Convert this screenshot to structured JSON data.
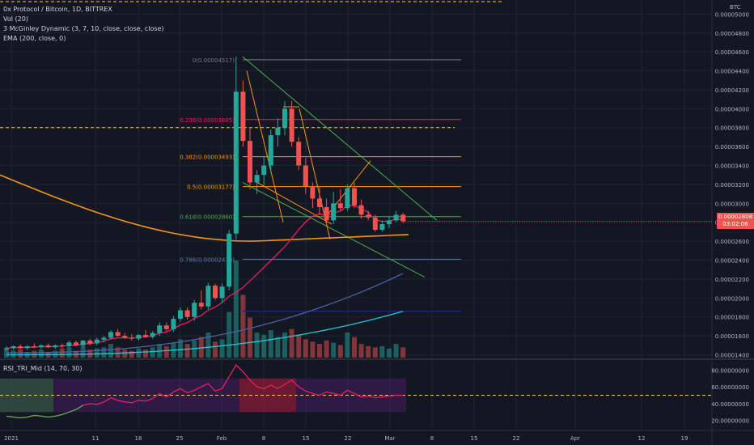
{
  "legend": {
    "symbol": "0x Protocol / Bitcoin, 1D, BITTREX",
    "vol": "Vol (20)",
    "mcginley": "3 McGinley Dynamic (3, 7, 10, close, close, close)",
    "ema": "EMA (200, close, 0)"
  },
  "rsi_legend": "RSI_TRI_Mid (14, 70, 30)",
  "price_tag": {
    "value": "0.00002808",
    "countdown": "03:02:06"
  },
  "axis_unit": "BTC",
  "colors": {
    "background": "#131722",
    "up": "#26a69a",
    "down": "#ef5350",
    "ema": "#f7931a",
    "mcginley1": "#e91e63",
    "mcginley2": "#4c5fa8",
    "mcginley3": "#26c6da",
    "fib_0": "#787b86",
    "fib_236": "#e91e63",
    "fib_382": "#f7931a",
    "fib_5": "#ff9800",
    "fib_618": "#4caf50",
    "fib_786": "#5b7db1",
    "rsi": "#e91e63",
    "rsi_band": "#7b1fa2",
    "dashed": "#f7c948"
  },
  "chart_data": [
    {
      "type": "candlestick",
      "title": "0x Protocol / Bitcoin, 1D, BITTREX",
      "x_axis_labels": [
        "2021",
        "11",
        "18",
        "25",
        "Feb",
        "8",
        "15",
        "22",
        "Mar",
        "8",
        "15",
        "22",
        "Apr",
        "12",
        "19"
      ],
      "y_axis_labels": [
        "0.00005000",
        "0.00004800",
        "0.00004600",
        "0.00004400",
        "0.00004200",
        "0.00004000",
        "0.00003800",
        "0.00003600",
        "0.00003400",
        "0.00003200",
        "0.00003000",
        "0.00002800",
        "0.00002600",
        "0.00002400",
        "0.00002200",
        "0.00002000",
        "0.00001800",
        "0.00001600",
        "0.00001400"
      ],
      "ylim": [
        1.37e-05,
        5.08e-05
      ],
      "fib_levels": [
        {
          "ratio": "0",
          "label": "0(0.00004517)",
          "price": 4.517e-05
        },
        {
          "ratio": "0.236",
          "label": "0.236(0.00003885)",
          "price": 3.885e-05
        },
        {
          "ratio": "0.382",
          "label": "0.382(0.00003493)",
          "price": 3.493e-05
        },
        {
          "ratio": "0.5",
          "label": "0.5(0.00003177)",
          "price": 3.177e-05
        },
        {
          "ratio": "0.618",
          "label": "0.618(0.00002860)",
          "price": 2.86e-05
        },
        {
          "ratio": "0.786",
          "label": "0.786(0.00002410)",
          "price": 2.41e-05
        }
      ],
      "candles": [
        {
          "o": 1.46e-05,
          "h": 1.49e-05,
          "l": 1.44e-05,
          "c": 1.47e-05
        },
        {
          "o": 1.47e-05,
          "h": 1.5e-05,
          "l": 1.45e-05,
          "c": 1.49e-05
        },
        {
          "o": 1.49e-05,
          "h": 1.51e-05,
          "l": 1.46e-05,
          "c": 1.47e-05
        },
        {
          "o": 1.47e-05,
          "h": 1.5e-05,
          "l": 1.45e-05,
          "c": 1.49e-05
        },
        {
          "o": 1.49e-05,
          "h": 1.52e-05,
          "l": 1.47e-05,
          "c": 1.48e-05
        },
        {
          "o": 1.48e-05,
          "h": 1.51e-05,
          "l": 1.46e-05,
          "c": 1.5e-05
        },
        {
          "o": 1.5e-05,
          "h": 1.52e-05,
          "l": 1.47e-05,
          "c": 1.48e-05
        },
        {
          "o": 1.48e-05,
          "h": 1.51e-05,
          "l": 1.46e-05,
          "c": 1.5e-05
        },
        {
          "o": 1.5e-05,
          "h": 1.52e-05,
          "l": 1.47e-05,
          "c": 1.49e-05
        },
        {
          "o": 1.49e-05,
          "h": 1.55e-05,
          "l": 1.47e-05,
          "c": 1.53e-05
        },
        {
          "o": 1.53e-05,
          "h": 1.55e-05,
          "l": 1.49e-05,
          "c": 1.5e-05
        },
        {
          "o": 1.5e-05,
          "h": 1.56e-05,
          "l": 1.48e-05,
          "c": 1.55e-05
        },
        {
          "o": 1.55e-05,
          "h": 1.57e-05,
          "l": 1.5e-05,
          "c": 1.52e-05
        },
        {
          "o": 1.52e-05,
          "h": 1.58e-05,
          "l": 1.5e-05,
          "c": 1.56e-05
        },
        {
          "o": 1.56e-05,
          "h": 1.6e-05,
          "l": 1.53e-05,
          "c": 1.58e-05
        },
        {
          "o": 1.58e-05,
          "h": 1.66e-05,
          "l": 1.56e-05,
          "c": 1.64e-05
        },
        {
          "o": 1.64e-05,
          "h": 1.67e-05,
          "l": 1.59e-05,
          "c": 1.6e-05
        },
        {
          "o": 1.6e-05,
          "h": 1.63e-05,
          "l": 1.57e-05,
          "c": 1.58e-05
        },
        {
          "o": 1.58e-05,
          "h": 1.62e-05,
          "l": 1.55e-05,
          "c": 1.57e-05
        },
        {
          "o": 1.57e-05,
          "h": 1.62e-05,
          "l": 1.55e-05,
          "c": 1.61e-05
        },
        {
          "o": 1.61e-05,
          "h": 1.66e-05,
          "l": 1.58e-05,
          "c": 1.59e-05
        },
        {
          "o": 1.59e-05,
          "h": 1.65e-05,
          "l": 1.57e-05,
          "c": 1.63e-05
        },
        {
          "o": 1.63e-05,
          "h": 1.74e-05,
          "l": 1.6e-05,
          "c": 1.71e-05
        },
        {
          "o": 1.71e-05,
          "h": 1.74e-05,
          "l": 1.65e-05,
          "c": 1.67e-05
        },
        {
          "o": 1.67e-05,
          "h": 1.81e-05,
          "l": 1.64e-05,
          "c": 1.78e-05
        },
        {
          "o": 1.78e-05,
          "h": 1.9e-05,
          "l": 1.75e-05,
          "c": 1.87e-05
        },
        {
          "o": 1.87e-05,
          "h": 1.9e-05,
          "l": 1.77e-05,
          "c": 1.8e-05
        },
        {
          "o": 1.8e-05,
          "h": 1.98e-05,
          "l": 1.76e-05,
          "c": 1.95e-05
        },
        {
          "o": 1.95e-05,
          "h": 2.08e-05,
          "l": 1.88e-05,
          "c": 1.91e-05
        },
        {
          "o": 1.91e-05,
          "h": 2.16e-05,
          "l": 1.88e-05,
          "c": 2.13e-05
        },
        {
          "o": 2.13e-05,
          "h": 2.15e-05,
          "l": 1.98e-05,
          "c": 2e-05
        },
        {
          "o": 2e-05,
          "h": 2.15e-05,
          "l": 1.95e-05,
          "c": 2.12e-05
        },
        {
          "o": 2.12e-05,
          "h": 2.72e-05,
          "l": 2.08e-05,
          "c": 2.68e-05
        },
        {
          "o": 2.68e-05,
          "h": 4.55e-05,
          "l": 2.62e-05,
          "c": 4.18e-05
        },
        {
          "o": 4.18e-05,
          "h": 4.3e-05,
          "l": 3.6e-05,
          "c": 3.66e-05
        },
        {
          "o": 3.66e-05,
          "h": 3.8e-05,
          "l": 3.15e-05,
          "c": 3.22e-05
        },
        {
          "o": 3.22e-05,
          "h": 3.35e-05,
          "l": 3.1e-05,
          "c": 3.3e-05
        },
        {
          "o": 3.3e-05,
          "h": 3.5e-05,
          "l": 3.18e-05,
          "c": 3.4e-05
        },
        {
          "o": 3.4e-05,
          "h": 3.78e-05,
          "l": 3.32e-05,
          "c": 3.72e-05
        },
        {
          "o": 3.72e-05,
          "h": 3.9e-05,
          "l": 3.6e-05,
          "c": 3.8e-05
        },
        {
          "o": 3.8e-05,
          "h": 4.08e-05,
          "l": 3.72e-05,
          "c": 4e-05
        },
        {
          "o": 4e-05,
          "h": 4.08e-05,
          "l": 3.6e-05,
          "c": 3.65e-05
        },
        {
          "o": 3.65e-05,
          "h": 3.7e-05,
          "l": 3.35e-05,
          "c": 3.4e-05
        },
        {
          "o": 3.4e-05,
          "h": 3.48e-05,
          "l": 3.1e-05,
          "c": 3.18e-05
        },
        {
          "o": 3.18e-05,
          "h": 3.22e-05,
          "l": 2.95e-05,
          "c": 3.05e-05
        },
        {
          "o": 3.05e-05,
          "h": 3.18e-05,
          "l": 2.88e-05,
          "c": 2.96e-05
        },
        {
          "o": 2.96e-05,
          "h": 3.05e-05,
          "l": 2.78e-05,
          "c": 2.82e-05
        },
        {
          "o": 2.82e-05,
          "h": 3.12e-05,
          "l": 2.78e-05,
          "c": 3e-05
        },
        {
          "o": 3e-05,
          "h": 3.15e-05,
          "l": 2.92e-05,
          "c": 2.95e-05
        },
        {
          "o": 2.95e-05,
          "h": 3.2e-05,
          "l": 2.92e-05,
          "c": 3.16e-05
        },
        {
          "o": 3.16e-05,
          "h": 3.22e-05,
          "l": 2.95e-05,
          "c": 2.98e-05
        },
        {
          "o": 2.98e-05,
          "h": 3.04e-05,
          "l": 2.84e-05,
          "c": 2.88e-05
        },
        {
          "o": 2.88e-05,
          "h": 2.92e-05,
          "l": 2.82e-05,
          "c": 2.85e-05
        },
        {
          "o": 2.85e-05,
          "h": 2.88e-05,
          "l": 2.7e-05,
          "c": 2.72e-05
        },
        {
          "o": 2.72e-05,
          "h": 2.82e-05,
          "l": 2.7e-05,
          "c": 2.78e-05
        },
        {
          "o": 2.78e-05,
          "h": 2.86e-05,
          "l": 2.74e-05,
          "c": 2.82e-05
        },
        {
          "o": 2.82e-05,
          "h": 2.92e-05,
          "l": 2.8e-05,
          "c": 2.88e-05
        },
        {
          "o": 2.88e-05,
          "h": 2.9e-05,
          "l": 2.79e-05,
          "c": 2.81e-05
        }
      ],
      "volume": [
        8,
        6,
        7,
        5,
        6,
        7,
        5,
        6,
        8,
        9,
        6,
        10,
        7,
        8,
        9,
        12,
        9,
        7,
        6,
        8,
        7,
        9,
        12,
        10,
        13,
        16,
        12,
        15,
        18,
        22,
        14,
        16,
        40,
        85,
        55,
        35,
        22,
        20,
        24,
        18,
        22,
        25,
        20,
        16,
        14,
        12,
        15,
        13,
        11,
        22,
        18,
        12,
        10,
        9,
        10,
        8,
        12,
        9
      ],
      "ema200": {
        "start": 3.3e-05,
        "min": 2.6e-05,
        "end": 2.67e-05
      },
      "mcginley": {
        "m1_end": 2.8e-05,
        "m2_end": 2.26e-05,
        "m3_end": 1.86e-05
      }
    },
    {
      "type": "line",
      "title": "RSI_TRI_Mid (14, 70, 30)",
      "y_axis_labels": [
        "80.00000000",
        "60.00000000",
        "40.00000000",
        "20.00000000"
      ],
      "ylim": [
        10,
        90
      ],
      "overbought": 70,
      "oversold": 30,
      "mid": 50,
      "values": [
        25,
        24,
        23,
        24,
        26,
        25,
        24,
        25,
        27,
        30,
        33,
        38,
        40,
        39,
        42,
        47,
        44,
        42,
        41,
        44,
        43,
        46,
        52,
        48,
        54,
        58,
        53,
        56,
        60,
        64,
        55,
        58,
        72,
        86,
        78,
        68,
        60,
        58,
        62,
        58,
        63,
        68,
        60,
        55,
        52,
        50,
        54,
        52,
        50,
        56,
        52,
        48,
        49,
        47,
        48,
        49,
        50,
        50
      ]
    }
  ]
}
